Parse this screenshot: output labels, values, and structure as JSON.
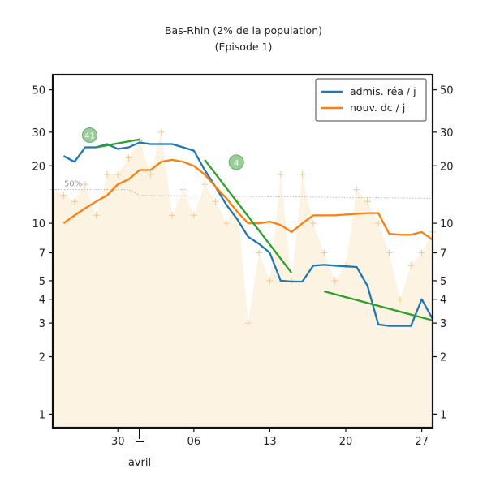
{
  "chart_data": {
    "type": "line",
    "title": "Bas-Rhin (2% de la population)",
    "subtitle": "(Épisode 1)",
    "y_scale": "log",
    "ylim": [
      0.85,
      60
    ],
    "xlim": [
      "2020-03-24",
      "2020-04-28"
    ],
    "yticks": [
      1,
      2,
      3,
      4,
      5,
      7,
      10,
      20,
      30,
      50
    ],
    "ytick_labels": [
      "1",
      "2",
      "3",
      "4",
      "5",
      "7",
      "10",
      "20",
      "30",
      "50"
    ],
    "xticks": [
      "2020-03-30",
      "2020-04-06",
      "2020-04-13",
      "2020-04-20",
      "2020-04-27"
    ],
    "xtick_labels": [
      "30",
      "06",
      "13",
      "20",
      "27"
    ],
    "month_marker": {
      "date": "2020-04-01",
      "label": "avril"
    },
    "legend_position": "top-right",
    "grid": false,
    "series": [
      {
        "name": "admis. réa / j",
        "color": "#1f77b4",
        "dates": [
          "2020-03-25",
          "2020-03-26",
          "2020-03-27",
          "2020-03-28",
          "2020-03-29",
          "2020-03-30",
          "2020-03-31",
          "2020-04-01",
          "2020-04-02",
          "2020-04-03",
          "2020-04-04",
          "2020-04-05",
          "2020-04-06",
          "2020-04-07",
          "2020-04-08",
          "2020-04-09",
          "2020-04-10",
          "2020-04-11",
          "2020-04-12",
          "2020-04-13",
          "2020-04-14",
          "2020-04-15",
          "2020-04-16",
          "2020-04-17",
          "2020-04-18",
          "2020-04-19",
          "2020-04-20",
          "2020-04-21",
          "2020-04-22",
          "2020-04-23",
          "2020-04-24",
          "2020-04-25",
          "2020-04-26",
          "2020-04-27",
          "2020-04-28"
        ],
        "values": [
          22.5,
          21,
          25,
          25,
          26,
          24.5,
          25,
          26.5,
          26,
          26,
          26,
          25,
          24,
          19,
          15.5,
          12.5,
          10.5,
          8.5,
          7.8,
          7,
          5,
          4.95,
          4.95,
          6,
          6.05,
          6,
          5.95,
          5.9,
          4.7,
          2.95,
          2.9,
          2.9,
          2.9,
          4,
          3.15
        ]
      },
      {
        "name": "nouv. dc / j",
        "color": "#ff7f0e",
        "dates": [
          "2020-03-25",
          "2020-03-26",
          "2020-03-27",
          "2020-03-28",
          "2020-03-29",
          "2020-03-30",
          "2020-03-31",
          "2020-04-01",
          "2020-04-02",
          "2020-04-03",
          "2020-04-04",
          "2020-04-05",
          "2020-04-06",
          "2020-04-07",
          "2020-04-08",
          "2020-04-09",
          "2020-04-10",
          "2020-04-11",
          "2020-04-12",
          "2020-04-13",
          "2020-04-14",
          "2020-04-15",
          "2020-04-16",
          "2020-04-17",
          "2020-04-18",
          "2020-04-19",
          "2020-04-20",
          "2020-04-21",
          "2020-04-22",
          "2020-04-23",
          "2020-04-24",
          "2020-04-25",
          "2020-04-26",
          "2020-04-27",
          "2020-04-28"
        ],
        "values": [
          10,
          11,
          12,
          13,
          14,
          16,
          17,
          19,
          19,
          21,
          21.5,
          21,
          20,
          18,
          15.5,
          13.5,
          11.5,
          10,
          10,
          10.2,
          9.8,
          9,
          10,
          11,
          11,
          11,
          11.1,
          11.2,
          11.3,
          11.3,
          8.8,
          8.7,
          8.7,
          9,
          8.2
        ]
      }
    ],
    "trend_lines": [
      {
        "color": "#2ca02c",
        "dates": [
          "2020-03-28",
          "2020-04-01"
        ],
        "values": [
          25,
          27.5
        ],
        "badge": "41"
      },
      {
        "color": "#2ca02c",
        "dates": [
          "2020-04-07",
          "2020-04-15"
        ],
        "values": [
          21.5,
          5.5
        ],
        "badge": "4"
      },
      {
        "color": "#2ca02c",
        "dates": [
          "2020-04-18",
          "2020-04-28"
        ],
        "values": [
          4.4,
          3.1
        ]
      }
    ],
    "background_area": {
      "color": "#fdf3e3",
      "marker_color": "#f5c88f",
      "dates": [
        "2020-03-24",
        "2020-03-25",
        "2020-03-26",
        "2020-03-27",
        "2020-03-28",
        "2020-03-29",
        "2020-03-30",
        "2020-03-31",
        "2020-04-01",
        "2020-04-02",
        "2020-04-03",
        "2020-04-04",
        "2020-04-05",
        "2020-04-06",
        "2020-04-07",
        "2020-04-08",
        "2020-04-09",
        "2020-04-10",
        "2020-04-11",
        "2020-04-12",
        "2020-04-13",
        "2020-04-14",
        "2020-04-15",
        "2020-04-16",
        "2020-04-17",
        "2020-04-18",
        "2020-04-19",
        "2020-04-20",
        "2020-04-21",
        "2020-04-22",
        "2020-04-23",
        "2020-04-24",
        "2020-04-25",
        "2020-04-26",
        "2020-04-27",
        "2020-04-28"
      ],
      "values": [
        15,
        14,
        13,
        16,
        11,
        18,
        18,
        22,
        27,
        18,
        30,
        11,
        15,
        11,
        16,
        13,
        10,
        13,
        3,
        7,
        5,
        18,
        5,
        18,
        10,
        7,
        5,
        6,
        15,
        13,
        10,
        7,
        4,
        6,
        7,
        9
      ]
    },
    "reference_line": {
      "label": "50%",
      "dates": [
        "2020-03-24",
        "2020-03-31",
        "2020-04-01",
        "2020-04-28"
      ],
      "values": [
        15,
        15,
        14,
        13.5
      ]
    }
  }
}
